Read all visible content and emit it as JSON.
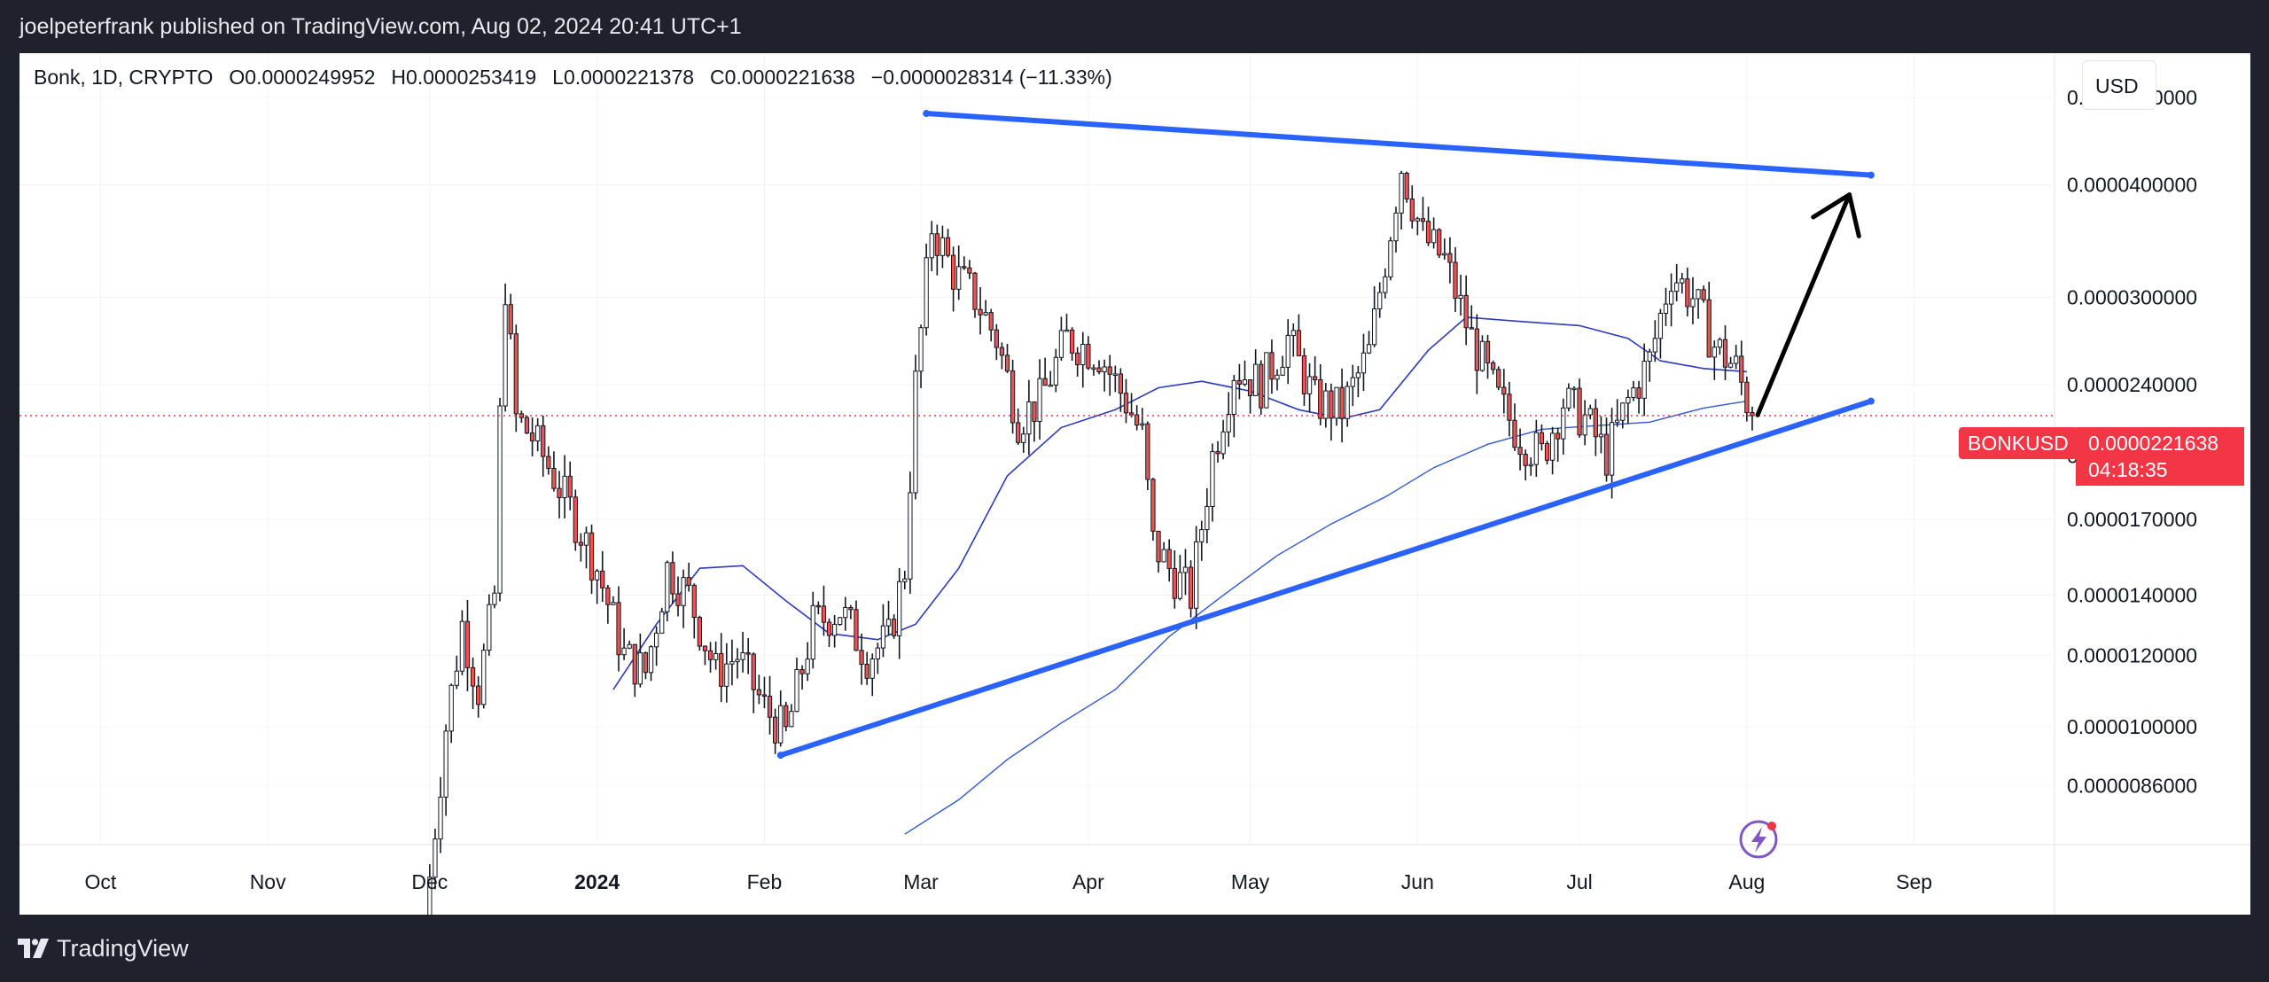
{
  "header": {
    "publisher_line": "joelpeterfrank published on TradingView.com, Aug 02, 2024 20:41 UTC+1"
  },
  "legend": {
    "symbol": "Bonk, 1D, CRYPTO",
    "open_label": "O",
    "open_value": "0.0000249952",
    "high_label": "H",
    "high_value": "0.0000253419",
    "low_label": "L",
    "low_value": "0.0000221378",
    "close_label": "C",
    "close_value": "0.0000221638",
    "change": "−0.0000028314 (−11.33%)"
  },
  "currency": "USD",
  "ticker_badge": "BONKUSD",
  "price_badge": {
    "price": "0.0000221638",
    "countdown": "04:18:35"
  },
  "footer": {
    "brand": "TradingView"
  },
  "colors": {
    "up": "#26a69a",
    "down": "#ef5350",
    "candle_body_up": "#ffffff",
    "wick": "#131722",
    "trendline": "#2962ff",
    "ma": "#2a3bbd",
    "arrow": "#000000",
    "badge": "#f23645"
  },
  "chart_data": {
    "type": "candlestick",
    "symbol": "BONKUSD",
    "scale": "log",
    "x_ticks": [
      "Oct",
      "Nov",
      "Dec",
      "2024",
      "Feb",
      "Mar",
      "Apr",
      "May",
      "Jun",
      "Jul",
      "Aug",
      "Sep"
    ],
    "x_tick_dates": [
      "2023-10-01",
      "2023-11-01",
      "2023-12-01",
      "2024-01-01",
      "2024-02-01",
      "2024-03-01",
      "2024-04-01",
      "2024-05-01",
      "2024-06-01",
      "2024-07-01",
      "2024-08-01",
      "2024-09-01"
    ],
    "y_ticks": [
      "0.0000500000",
      "0.0000400000",
      "0.0000300000",
      "0.0000240000",
      "0.0000200000",
      "0.0000170000",
      "0.0000140000",
      "0.0000120000",
      "0.0000100000",
      "0.0000086000"
    ],
    "y_tick_values": [
      5e-05,
      4e-05,
      3e-05,
      2.4e-05,
      2e-05,
      1.7e-05,
      1.4e-05,
      1.2e-05,
      1e-05,
      8.6e-06
    ],
    "y_range": [
      7.4e-06,
      5.6e-05
    ],
    "x_range": [
      "2023-09-16",
      "2024-09-27"
    ],
    "last_price": 2.21638e-05,
    "price_path": [
      [
        "2023-11-30",
        6e-06
      ],
      [
        "2023-12-04",
        1e-05
      ],
      [
        "2023-12-07",
        1.3e-05
      ],
      [
        "2023-12-10",
        1.1e-05
      ],
      [
        "2023-12-13",
        1.4e-05
      ],
      [
        "2023-12-14",
        2.2e-05
      ],
      [
        "2023-12-15",
        3.1e-05
      ],
      [
        "2023-12-17",
        2.2e-05
      ],
      [
        "2023-12-20",
        2.1e-05
      ],
      [
        "2023-12-24",
        1.9e-05
      ],
      [
        "2023-12-28",
        1.7e-05
      ],
      [
        "2024-01-01",
        1.5e-05
      ],
      [
        "2024-01-06",
        1.2e-05
      ],
      [
        "2024-01-10",
        1.15e-05
      ],
      [
        "2024-01-14",
        1.5e-05
      ],
      [
        "2024-01-18",
        1.4e-05
      ],
      [
        "2024-01-23",
        1.15e-05
      ],
      [
        "2024-01-27",
        1.2e-05
      ],
      [
        "2024-02-01",
        1.05e-05
      ],
      [
        "2024-02-05",
        9.8e-06
      ],
      [
        "2024-02-10",
        1.3e-05
      ],
      [
        "2024-02-15",
        1.35e-05
      ],
      [
        "2024-02-20",
        1.2e-05
      ],
      [
        "2024-02-24",
        1.25e-05
      ],
      [
        "2024-02-27",
        1.5e-05
      ],
      [
        "2024-02-29",
        2.4e-05
      ],
      [
        "2024-03-03",
        3.6e-05
      ],
      [
        "2024-03-07",
        3.2e-05
      ],
      [
        "2024-03-11",
        3e-05
      ],
      [
        "2024-03-15",
        2.7e-05
      ],
      [
        "2024-03-19",
        2.2e-05
      ],
      [
        "2024-03-23",
        2.3e-05
      ],
      [
        "2024-03-28",
        2.7e-05
      ],
      [
        "2024-04-03",
        2.6e-05
      ],
      [
        "2024-04-08",
        2.3e-05
      ],
      [
        "2024-04-11",
        2.1e-05
      ],
      [
        "2024-04-13",
        1.6e-05
      ],
      [
        "2024-04-16",
        1.5e-05
      ],
      [
        "2024-04-20",
        1.4e-05
      ],
      [
        "2024-04-24",
        2e-05
      ],
      [
        "2024-04-28",
        2.5e-05
      ],
      [
        "2024-05-03",
        2.4e-05
      ],
      [
        "2024-05-08",
        2.7e-05
      ],
      [
        "2024-05-13",
        2.3e-05
      ],
      [
        "2024-05-18",
        2.25e-05
      ],
      [
        "2024-05-23",
        2.6e-05
      ],
      [
        "2024-05-26",
        3.3e-05
      ],
      [
        "2024-05-29",
        4.2e-05
      ],
      [
        "2024-06-02",
        3.5e-05
      ],
      [
        "2024-06-06",
        3.3e-05
      ],
      [
        "2024-06-11",
        2.7e-05
      ],
      [
        "2024-06-16",
        2.3e-05
      ],
      [
        "2024-06-20",
        2.1e-05
      ],
      [
        "2024-06-24",
        2e-05
      ],
      [
        "2024-06-28",
        2.3e-05
      ],
      [
        "2024-07-02",
        2.2e-05
      ],
      [
        "2024-07-06",
        2e-05
      ],
      [
        "2024-07-10",
        2.3e-05
      ],
      [
        "2024-07-14",
        2.55e-05
      ],
      [
        "2024-07-18",
        3.2e-05
      ],
      [
        "2024-07-22",
        3e-05
      ],
      [
        "2024-07-26",
        2.65e-05
      ],
      [
        "2024-07-30",
        2.5e-05
      ],
      [
        "2024-08-02",
        2.21638e-05
      ]
    ],
    "moving_average_1": [
      [
        "2024-01-04",
        1.1e-05
      ],
      [
        "2024-01-12",
        1.3e-05
      ],
      [
        "2024-01-20",
        1.5e-05
      ],
      [
        "2024-01-28",
        1.51e-05
      ],
      [
        "2024-02-05",
        1.38e-05
      ],
      [
        "2024-02-13",
        1.27e-05
      ],
      [
        "2024-02-22",
        1.25e-05
      ],
      [
        "2024-02-29",
        1.3e-05
      ],
      [
        "2024-03-08",
        1.5e-05
      ],
      [
        "2024-03-17",
        1.9e-05
      ],
      [
        "2024-03-27",
        2.15e-05
      ],
      [
        "2024-04-06",
        2.25e-05
      ],
      [
        "2024-04-14",
        2.38e-05
      ],
      [
        "2024-04-22",
        2.42e-05
      ],
      [
        "2024-05-01",
        2.36e-05
      ],
      [
        "2024-05-10",
        2.25e-05
      ],
      [
        "2024-05-18",
        2.2e-05
      ],
      [
        "2024-05-25",
        2.25e-05
      ],
      [
        "2024-06-03",
        2.62e-05
      ],
      [
        "2024-06-10",
        2.85e-05
      ],
      [
        "2024-06-20",
        2.82e-05
      ],
      [
        "2024-07-01",
        2.79e-05
      ],
      [
        "2024-07-10",
        2.7e-05
      ],
      [
        "2024-07-16",
        2.55e-05
      ],
      [
        "2024-07-24",
        2.5e-05
      ],
      [
        "2024-08-01",
        2.48e-05
      ]
    ],
    "moving_average_2": [
      [
        "2024-02-27",
        7.6e-06
      ],
      [
        "2024-03-08",
        8.3e-06
      ],
      [
        "2024-03-17",
        9.2e-06
      ],
      [
        "2024-03-27",
        1.01e-05
      ],
      [
        "2024-04-06",
        1.1e-05
      ],
      [
        "2024-04-16",
        1.26e-05
      ],
      [
        "2024-04-26",
        1.4e-05
      ],
      [
        "2024-05-06",
        1.55e-05
      ],
      [
        "2024-05-16",
        1.68e-05
      ],
      [
        "2024-05-26",
        1.8e-05
      ],
      [
        "2024-06-04",
        1.94e-05
      ],
      [
        "2024-06-14",
        2.06e-05
      ],
      [
        "2024-06-24",
        2.14e-05
      ],
      [
        "2024-07-04",
        2.16e-05
      ],
      [
        "2024-07-14",
        2.18e-05
      ],
      [
        "2024-07-24",
        2.26e-05
      ],
      [
        "2024-08-01",
        2.3e-05
      ]
    ],
    "trendline_upper": [
      [
        "2024-03-02",
        4.8e-05
      ],
      [
        "2024-08-24",
        4.1e-05
      ]
    ],
    "trendline_lower": [
      [
        "2024-02-04",
        9.3e-06
      ],
      [
        "2024-08-24",
        2.3e-05
      ]
    ],
    "arrow_projection": [
      [
        "2024-08-03",
        2.22e-05
      ],
      [
        "2024-08-20",
        3.9e-05
      ]
    ]
  }
}
